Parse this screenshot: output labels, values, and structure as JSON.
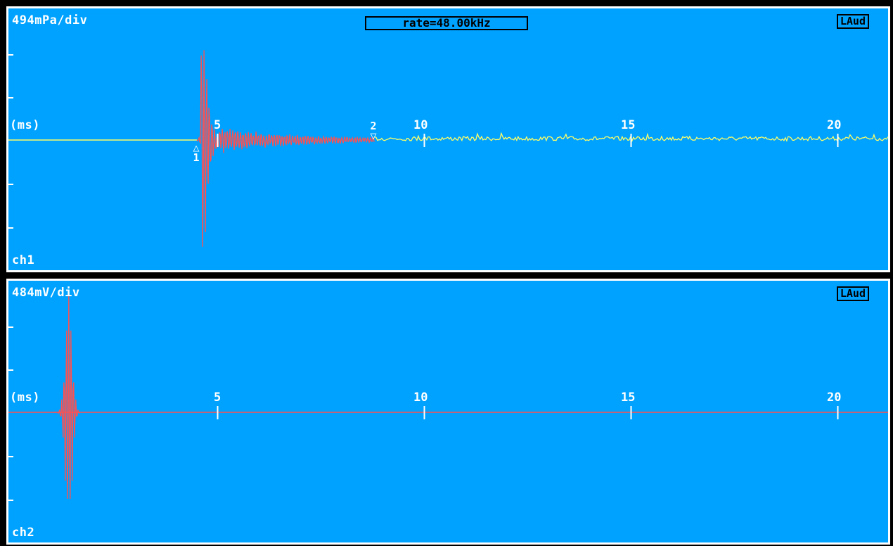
{
  "rate_label": "rate=48.00kHz",
  "colors": {
    "background": "#00a2ff",
    "signal": "#ff5050",
    "trace": "#ffff66",
    "text": "#ffffff"
  },
  "ch1": {
    "scale_label": "494mPa/div",
    "unit_label": "(ms)",
    "channel_label": "ch1",
    "badge": "LAud",
    "x_ticks": [
      "5",
      "10",
      "15",
      "20"
    ],
    "markers": [
      {
        "label": "1",
        "symbol": "△",
        "time_ms": 4.5
      },
      {
        "label": "2",
        "symbol": "▽",
        "time_ms": 8.8
      }
    ]
  },
  "ch2": {
    "scale_label": "484mV/div",
    "unit_label": "(ms)",
    "channel_label": "ch2",
    "badge": "LAud",
    "x_ticks": [
      "5",
      "10",
      "15",
      "20"
    ]
  }
}
